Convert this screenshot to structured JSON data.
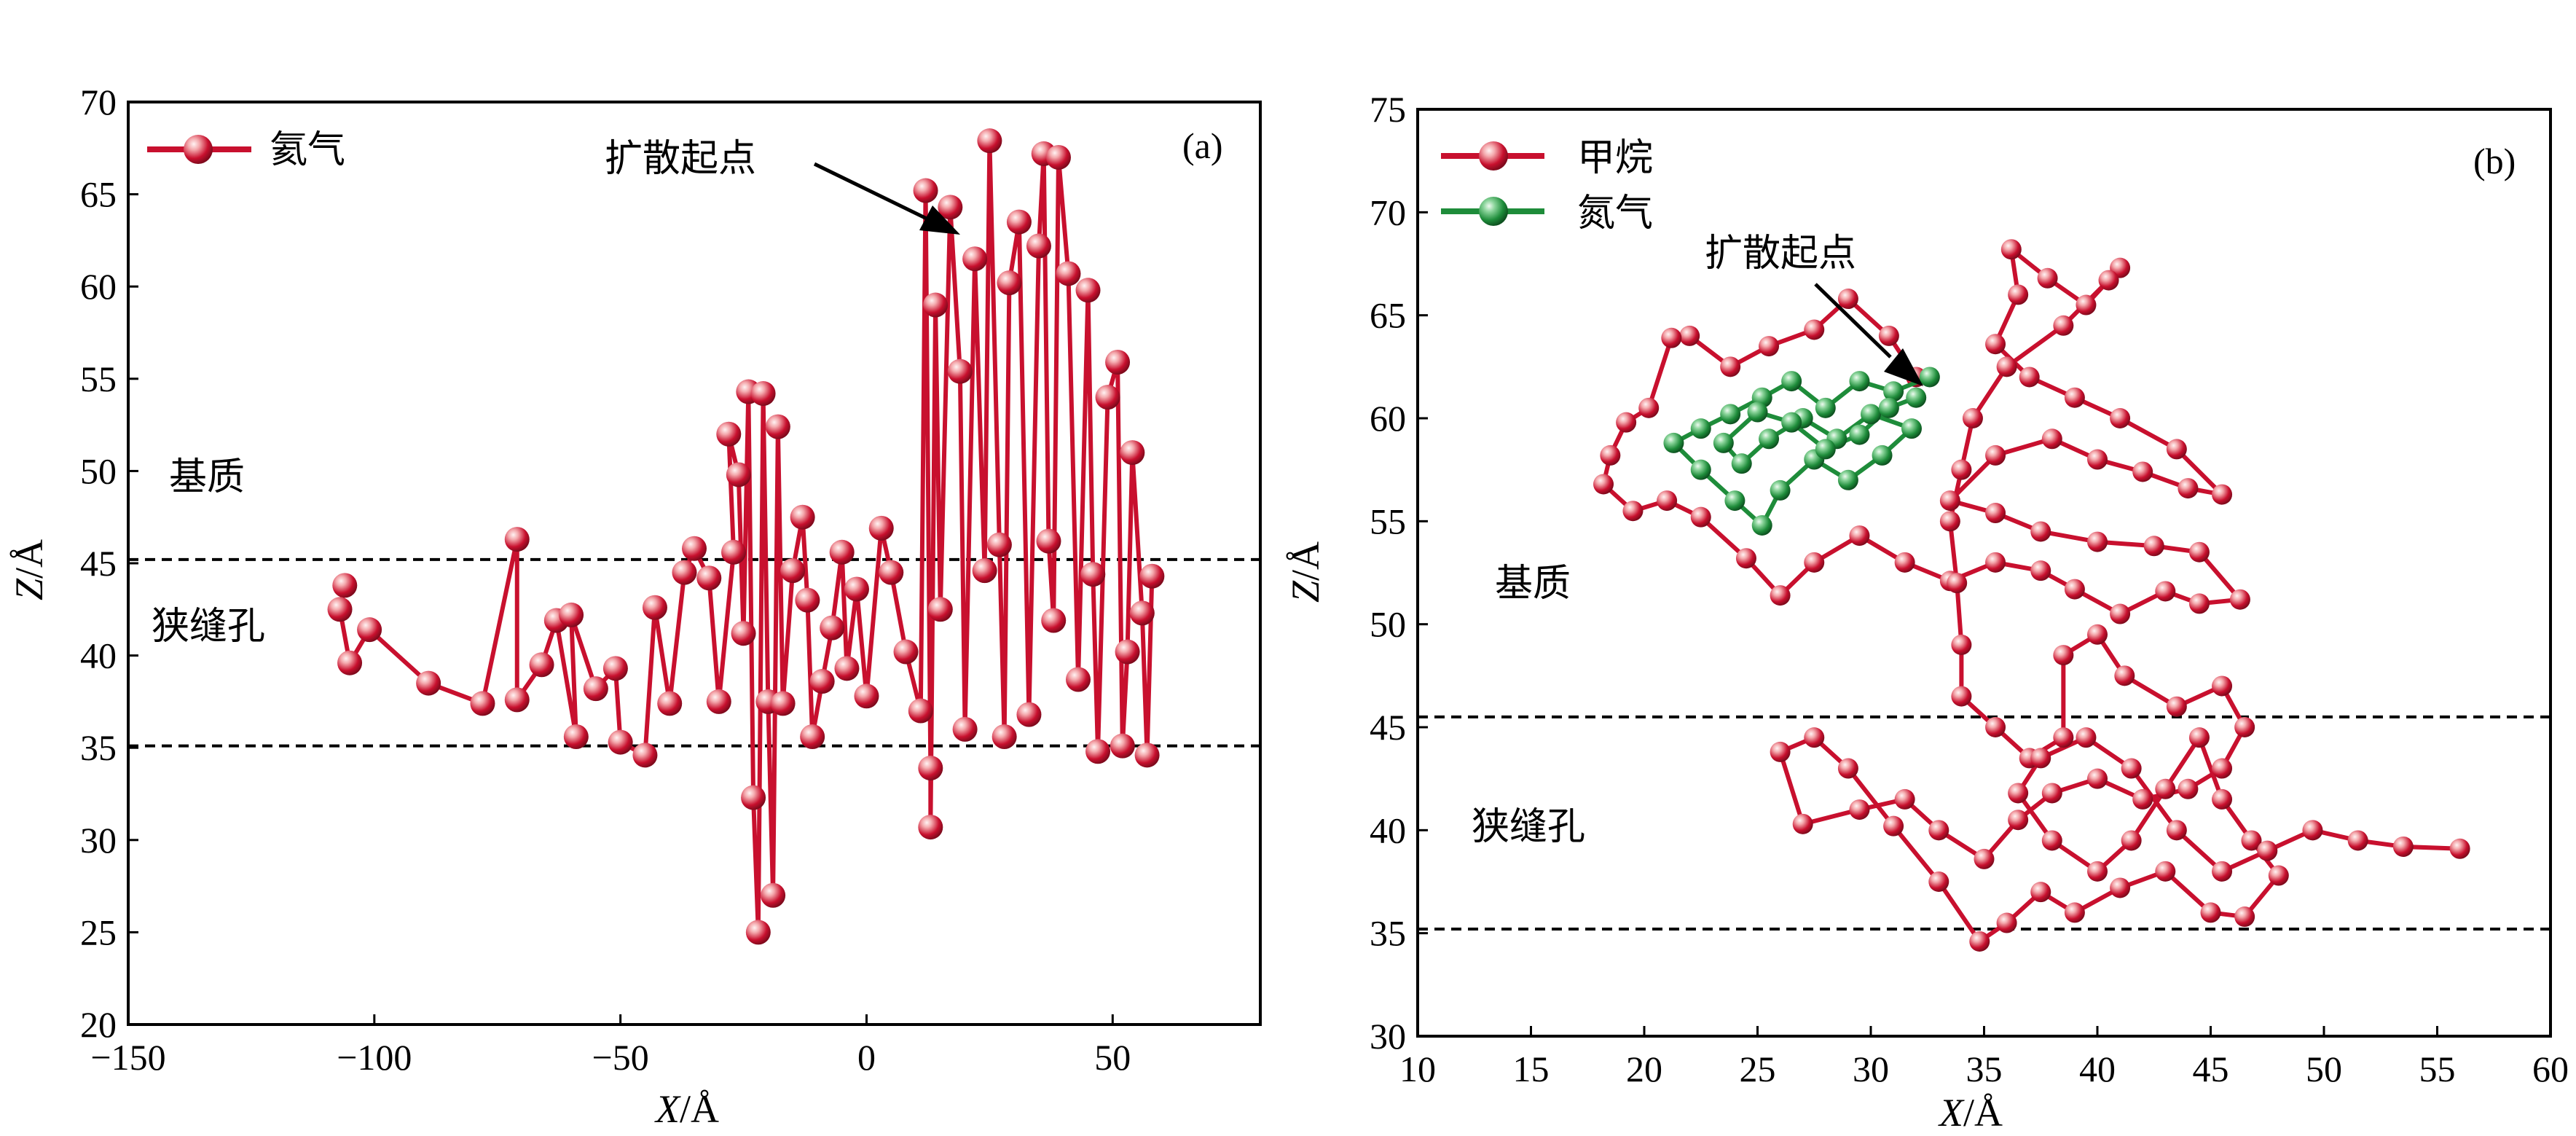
{
  "colors": {
    "helium": "#c8102e",
    "helium_light": "#f6c9cc",
    "methane": "#c8102e",
    "nitrogen": "#1e8c3a",
    "nitrogen_light": "#b9e5c2",
    "axis": "#000000"
  },
  "chart_data": [
    {
      "type": "line",
      "panel": "(a)",
      "xlabel_var": "X",
      "xlabel_unit": "Å",
      "ylabel_var": "Z",
      "ylabel_unit": "Å",
      "xlim": [
        -150,
        80
      ],
      "ylim": [
        20,
        70
      ],
      "xticks": [
        -150,
        -100,
        -50,
        0,
        50
      ],
      "xtick_labels": [
        "−150",
        "−100",
        "−50",
        "0",
        "50"
      ],
      "yticks": [
        20,
        25,
        30,
        35,
        40,
        45,
        50,
        55,
        60,
        65,
        70
      ],
      "ytick_labels": [
        "20",
        "25",
        "30",
        "35",
        "40",
        "45",
        "50",
        "55",
        "60",
        "65",
        "70"
      ],
      "legend_position": "top-left",
      "series": [
        {
          "name": "氦气",
          "color_key": "helium",
          "points": [
            [
              -106,
              43.8
            ],
            [
              -107,
              42.5
            ],
            [
              -105,
              39.6
            ],
            [
              -101,
              41.4
            ],
            [
              -89,
              38.5
            ],
            [
              -78,
              37.4
            ],
            [
              -71,
              46.3
            ],
            [
              -71,
              37.6
            ],
            [
              -66,
              39.5
            ],
            [
              -63,
              41.9
            ],
            [
              -59,
              35.6
            ],
            [
              -60,
              42.2
            ],
            [
              -55,
              38.2
            ],
            [
              -51,
              39.3
            ],
            [
              -50,
              35.3
            ],
            [
              -45,
              34.6
            ],
            [
              -43,
              42.6
            ],
            [
              -40,
              37.4
            ],
            [
              -37,
              44.5
            ],
            [
              -35,
              45.8
            ],
            [
              -32,
              44.2
            ],
            [
              -30,
              37.5
            ],
            [
              -27,
              45.6
            ],
            [
              -28,
              52.0
            ],
            [
              -26,
              49.8
            ],
            [
              -25,
              41.2
            ],
            [
              -24,
              54.3
            ],
            [
              -23,
              32.3
            ],
            [
              -22,
              25.0
            ],
            [
              -21,
              54.2
            ],
            [
              -20,
              37.5
            ],
            [
              -19,
              27.0
            ],
            [
              -18,
              52.4
            ],
            [
              -17,
              37.4
            ],
            [
              -15,
              44.6
            ],
            [
              -13,
              47.5
            ],
            [
              -12,
              43.0
            ],
            [
              -11,
              35.6
            ],
            [
              -9,
              38.6
            ],
            [
              -7,
              41.5
            ],
            [
              -5,
              45.6
            ],
            [
              -4,
              39.3
            ],
            [
              -2,
              43.6
            ],
            [
              0,
              37.8
            ],
            [
              3,
              46.9
            ],
            [
              5,
              44.5
            ],
            [
              8,
              40.2
            ],
            [
              11,
              37.0
            ],
            [
              12,
              65.2
            ],
            [
              13,
              33.9
            ],
            [
              13,
              30.7
            ],
            [
              14,
              59.0
            ],
            [
              15,
              42.5
            ],
            [
              17,
              64.3
            ],
            [
              19,
              55.4
            ],
            [
              20,
              36.0
            ],
            [
              22,
              61.5
            ],
            [
              24,
              44.6
            ],
            [
              25,
              67.9
            ],
            [
              27,
              46.0
            ],
            [
              28,
              35.6
            ],
            [
              29,
              60.2
            ],
            [
              31,
              63.5
            ],
            [
              33,
              36.8
            ],
            [
              35,
              62.2
            ],
            [
              36,
              67.2
            ],
            [
              37,
              46.2
            ],
            [
              38,
              41.9
            ],
            [
              39,
              67.0
            ],
            [
              41,
              60.7
            ],
            [
              43,
              38.7
            ],
            [
              45,
              59.8
            ],
            [
              46,
              44.4
            ],
            [
              47,
              34.8
            ],
            [
              49,
              54.0
            ],
            [
              51,
              55.9
            ],
            [
              52,
              35.1
            ],
            [
              53,
              40.2
            ],
            [
              54,
              51.0
            ],
            [
              56,
              42.3
            ],
            [
              57,
              34.6
            ],
            [
              58,
              44.3
            ]
          ]
        }
      ]
    },
    {
      "type": "line",
      "panel": "(b)",
      "xlabel_var": "X",
      "xlabel_unit": "Å",
      "ylabel_var": "Z",
      "ylabel_unit": "Å",
      "xlim": [
        10,
        60
      ],
      "ylim": [
        30,
        75
      ],
      "xticks": [
        10,
        15,
        20,
        25,
        30,
        35,
        40,
        45,
        50,
        55,
        60
      ],
      "xtick_labels": [
        "10",
        "15",
        "20",
        "25",
        "30",
        "35",
        "40",
        "45",
        "50",
        "55",
        "60"
      ],
      "yticks": [
        30,
        35,
        40,
        45,
        50,
        55,
        60,
        65,
        70,
        75
      ],
      "ytick_labels": [
        "30",
        "35",
        "40",
        "45",
        "50",
        "55",
        "60",
        "65",
        "70",
        "75"
      ],
      "legend_position": "top-left",
      "series": [
        {
          "name": "甲烷",
          "color_key": "methane",
          "points": [
            [
              32.0,
              62.0
            ],
            [
              30.8,
              64.0
            ],
            [
              29.0,
              65.8
            ],
            [
              27.5,
              64.3
            ],
            [
              25.5,
              63.5
            ],
            [
              23.8,
              62.5
            ],
            [
              22.0,
              64.0
            ],
            [
              21.2,
              63.9
            ],
            [
              20.2,
              60.5
            ],
            [
              19.2,
              59.8
            ],
            [
              18.5,
              58.2
            ],
            [
              18.2,
              56.8
            ],
            [
              19.5,
              55.5
            ],
            [
              21.0,
              56.0
            ],
            [
              22.5,
              55.2
            ],
            [
              24.5,
              53.2
            ],
            [
              26.0,
              51.4
            ],
            [
              27.5,
              53.0
            ],
            [
              29.5,
              54.3
            ],
            [
              31.5,
              53.0
            ],
            [
              33.5,
              52.1
            ],
            [
              35.5,
              53.0
            ],
            [
              37.5,
              52.6
            ],
            [
              39.0,
              51.7
            ],
            [
              41.0,
              50.5
            ],
            [
              43.0,
              51.6
            ],
            [
              44.5,
              51.0
            ],
            [
              46.3,
              51.2
            ],
            [
              44.5,
              53.5
            ],
            [
              42.5,
              53.8
            ],
            [
              40.0,
              54.0
            ],
            [
              37.5,
              54.5
            ],
            [
              35.5,
              55.4
            ],
            [
              33.5,
              56.0
            ],
            [
              35.5,
              58.2
            ],
            [
              38.0,
              59.0
            ],
            [
              40.0,
              58.0
            ],
            [
              42.0,
              57.4
            ],
            [
              44.0,
              56.6
            ],
            [
              45.5,
              56.3
            ],
            [
              43.5,
              58.5
            ],
            [
              41.0,
              60.0
            ],
            [
              39.0,
              61.0
            ],
            [
              37.0,
              62.0
            ],
            [
              35.5,
              63.6
            ],
            [
              36.5,
              66.0
            ],
            [
              36.2,
              68.2
            ],
            [
              37.8,
              66.8
            ],
            [
              39.5,
              65.5
            ],
            [
              41.0,
              67.3
            ],
            [
              40.5,
              66.7
            ],
            [
              38.5,
              64.5
            ],
            [
              36.0,
              62.5
            ],
            [
              34.5,
              60.0
            ],
            [
              34.0,
              57.5
            ],
            [
              33.5,
              55.0
            ],
            [
              33.8,
              52.0
            ],
            [
              34.0,
              49.0
            ],
            [
              34.0,
              46.5
            ],
            [
              35.5,
              45.0
            ],
            [
              37.0,
              43.5
            ],
            [
              38.5,
              44.5
            ],
            [
              38.5,
              48.5
            ],
            [
              40.0,
              49.5
            ],
            [
              41.2,
              47.5
            ],
            [
              43.5,
              46.0
            ],
            [
              45.5,
              47.0
            ],
            [
              46.5,
              45.0
            ],
            [
              45.5,
              43.0
            ],
            [
              44.0,
              42.0
            ],
            [
              42.0,
              41.5
            ],
            [
              40.0,
              42.5
            ],
            [
              38.0,
              41.8
            ],
            [
              36.5,
              40.5
            ],
            [
              35.0,
              38.6
            ],
            [
              33.0,
              40.0
            ],
            [
              31.5,
              41.5
            ],
            [
              29.5,
              41.0
            ],
            [
              27.0,
              40.3
            ],
            [
              26.0,
              43.8
            ],
            [
              27.5,
              44.5
            ],
            [
              29.0,
              43.0
            ],
            [
              31.0,
              40.2
            ],
            [
              33.0,
              37.5
            ],
            [
              34.8,
              34.6
            ],
            [
              36.0,
              35.5
            ],
            [
              37.5,
              37.0
            ],
            [
              39.0,
              36.0
            ],
            [
              41.0,
              37.2
            ],
            [
              43.0,
              38.0
            ],
            [
              45.0,
              36.0
            ],
            [
              46.5,
              35.8
            ],
            [
              48.0,
              37.8
            ],
            [
              46.8,
              39.5
            ],
            [
              45.5,
              41.5
            ],
            [
              44.5,
              44.5
            ],
            [
              43.0,
              42.0
            ],
            [
              41.5,
              39.5
            ],
            [
              40.0,
              38.0
            ],
            [
              38.0,
              39.5
            ],
            [
              36.5,
              41.8
            ],
            [
              37.5,
              43.5
            ],
            [
              39.5,
              44.5
            ],
            [
              41.5,
              43.0
            ],
            [
              43.5,
              40.0
            ],
            [
              45.5,
              38.0
            ],
            [
              47.5,
              39.0
            ],
            [
              49.5,
              40.0
            ],
            [
              51.5,
              39.5
            ],
            [
              53.5,
              39.2
            ],
            [
              56.0,
              39.1
            ]
          ]
        },
        {
          "name": "氮气",
          "color_key": "nitrogen",
          "points": [
            [
              32.6,
              62.0
            ],
            [
              31.0,
              61.3
            ],
            [
              29.5,
              61.8
            ],
            [
              28.0,
              60.5
            ],
            [
              26.5,
              61.8
            ],
            [
              25.2,
              61.0
            ],
            [
              23.8,
              60.2
            ],
            [
              22.5,
              59.5
            ],
            [
              21.3,
              58.8
            ],
            [
              22.5,
              57.5
            ],
            [
              24.0,
              56.0
            ],
            [
              25.2,
              54.8
            ],
            [
              26.0,
              56.5
            ],
            [
              27.5,
              58.0
            ],
            [
              29.0,
              57.0
            ],
            [
              30.5,
              58.2
            ],
            [
              31.8,
              59.5
            ],
            [
              30.0,
              60.2
            ],
            [
              28.5,
              59.0
            ],
            [
              27.0,
              60.0
            ],
            [
              25.5,
              59.0
            ],
            [
              24.3,
              57.8
            ],
            [
              23.5,
              58.8
            ],
            [
              25.0,
              60.3
            ],
            [
              26.5,
              59.8
            ],
            [
              28.0,
              58.5
            ],
            [
              29.5,
              59.2
            ],
            [
              30.8,
              60.5
            ],
            [
              32.0,
              61.0
            ]
          ]
        }
      ]
    }
  ],
  "annotations": {
    "a": {
      "legend_label": "氦气",
      "start_label": "扩散起点",
      "matrix_label": "基质",
      "pore_label": "狭缝孔",
      "panel_tag": "(a)",
      "boundary_upper": 45.2,
      "boundary_lower": 35.1
    },
    "b": {
      "legend_label_1": "甲烷",
      "legend_label_2": "氮气",
      "start_label": "扩散起点",
      "matrix_label": "基质",
      "pore_label": "狭缝孔",
      "panel_tag": "(b)",
      "boundary_upper": 45.5,
      "boundary_lower": 35.2
    }
  }
}
